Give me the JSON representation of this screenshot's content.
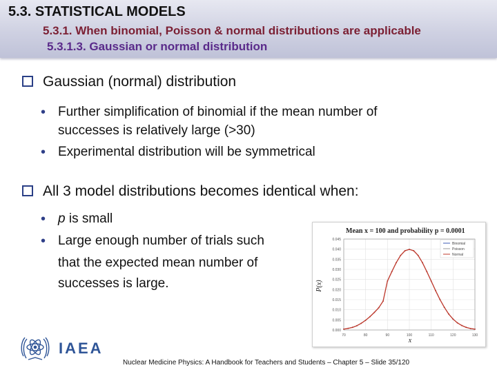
{
  "header": {
    "title": "5.3. STATISTICAL MODELS",
    "subtitle": "5.3.1. When binomial, Poisson & normal distributions are applicable",
    "section": "5.3.1.3. Gaussian or normal distribution"
  },
  "q1": {
    "text": "Gaussian (normal) distribution",
    "b1_line1": "Further simplification of binomial if the mean number of",
    "b1_line2": "successes  is relatively large (>30)",
    "b2": "Experimental distribution will be symmetrical"
  },
  "q2": {
    "text": "All 3 model distributions becomes identical when:",
    "b1_var": "p",
    "b1_rest": " is small",
    "b2_line1": "Large enough number of trials such",
    "b2_line2": "that the expected mean number of",
    "b2_line3": "successes is large."
  },
  "logo": {
    "text": "IAEA",
    "color": "#2f5597"
  },
  "footer": "Nuclear Medicine Physics:  A Handbook for Teachers and Students  –  Chapter 5 – Slide 35/120",
  "chart_data": {
    "type": "line",
    "title": "Mean x = 100 and probability p = 0.0001",
    "xlabel": "x",
    "ylabel": "P(x)",
    "xlim": [
      70,
      130
    ],
    "ylim": [
      0,
      0.045
    ],
    "xticks": [
      "70",
      "80",
      "90",
      "100",
      "110",
      "120",
      "130"
    ],
    "yticks": [
      "0.000",
      "0.005",
      "0.010",
      "0.015",
      "0.020",
      "0.025",
      "0.030",
      "0.035",
      "0.040",
      "0.045"
    ],
    "grid": true,
    "legend_position": "top-right",
    "series": [
      {
        "name": "Binomial",
        "color": "#3b5bb5",
        "x": [
          70,
          72,
          74,
          76,
          78,
          80,
          82,
          84,
          86,
          88,
          90,
          92,
          94,
          96,
          98,
          100,
          102,
          104,
          106,
          108,
          110,
          112,
          114,
          116,
          118,
          120,
          122,
          124,
          126,
          128,
          130
        ],
        "y": [
          0.0004,
          0.0008,
          0.0013,
          0.0021,
          0.0033,
          0.0048,
          0.0066,
          0.0087,
          0.011,
          0.0143,
          0.0242,
          0.0289,
          0.0333,
          0.0369,
          0.0392,
          0.0399,
          0.0392,
          0.0369,
          0.0333,
          0.0289,
          0.0242,
          0.0195,
          0.0151,
          0.0112,
          0.0079,
          0.0054,
          0.0035,
          0.0022,
          0.0013,
          0.0007,
          0.0004
        ]
      },
      {
        "name": "Poisson",
        "color": "#9a9a9a",
        "x": [
          70,
          72,
          74,
          76,
          78,
          80,
          82,
          84,
          86,
          88,
          90,
          92,
          94,
          96,
          98,
          100,
          102,
          104,
          106,
          108,
          110,
          112,
          114,
          116,
          118,
          120,
          122,
          124,
          126,
          128,
          130
        ],
        "y": [
          0.0004,
          0.0008,
          0.0013,
          0.0021,
          0.0033,
          0.0048,
          0.0066,
          0.0087,
          0.011,
          0.0143,
          0.0242,
          0.0289,
          0.0333,
          0.0369,
          0.0392,
          0.0399,
          0.0392,
          0.0369,
          0.0333,
          0.0289,
          0.0242,
          0.0195,
          0.0151,
          0.0112,
          0.0079,
          0.0054,
          0.0035,
          0.0022,
          0.0013,
          0.0007,
          0.0004
        ]
      },
      {
        "name": "Normal",
        "color": "#c0392b",
        "x": [
          70,
          72,
          74,
          76,
          78,
          80,
          82,
          84,
          86,
          88,
          90,
          92,
          94,
          96,
          98,
          100,
          102,
          104,
          106,
          108,
          110,
          112,
          114,
          116,
          118,
          120,
          122,
          124,
          126,
          128,
          130
        ],
        "y": [
          0.0004,
          0.0008,
          0.0013,
          0.0021,
          0.0033,
          0.0048,
          0.0066,
          0.0087,
          0.011,
          0.0143,
          0.0242,
          0.0289,
          0.0333,
          0.0369,
          0.0392,
          0.0399,
          0.0392,
          0.0369,
          0.0333,
          0.0289,
          0.0242,
          0.0195,
          0.0151,
          0.0112,
          0.0079,
          0.0054,
          0.0035,
          0.0022,
          0.0013,
          0.0007,
          0.0004
        ]
      }
    ]
  }
}
